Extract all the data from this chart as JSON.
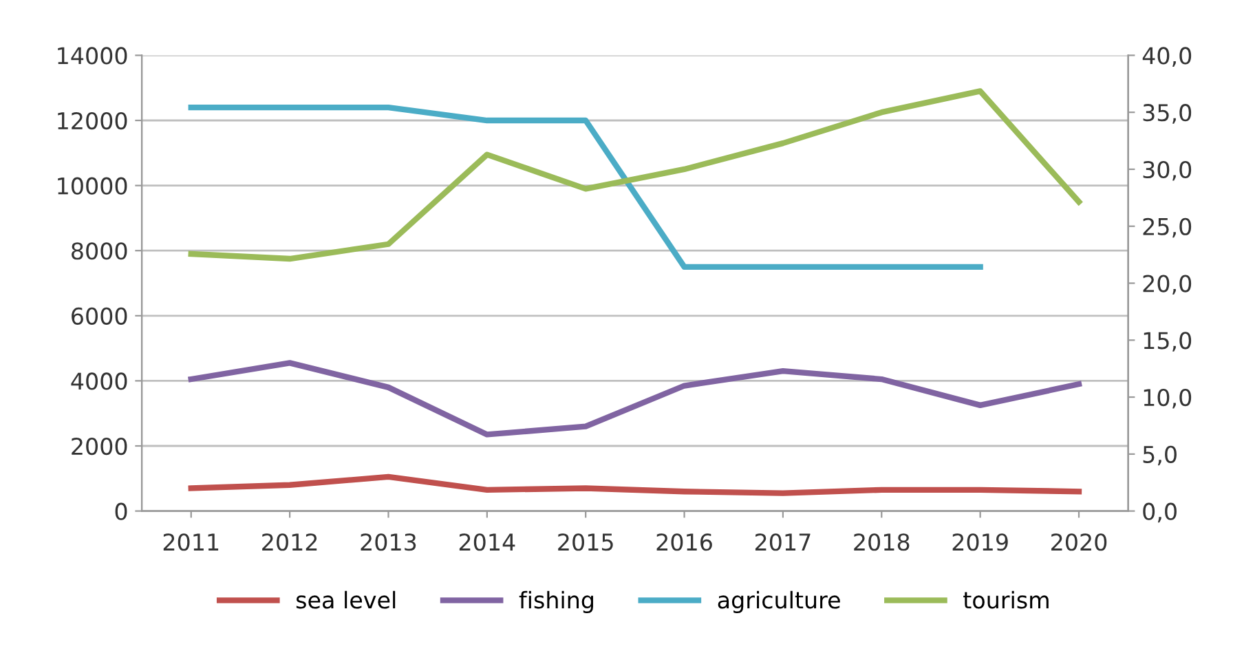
{
  "chart_data": {
    "type": "line",
    "categories": [
      "2011",
      "2012",
      "2013",
      "2014",
      "2015",
      "2016",
      "2017",
      "2018",
      "2019",
      "2020"
    ],
    "series": [
      {
        "name": "sea level",
        "color": "#c0504d",
        "values": [
          700,
          800,
          1050,
          650,
          700,
          600,
          550,
          650,
          650,
          600
        ]
      },
      {
        "name": "fishing",
        "color": "#8064a2",
        "values": [
          4050,
          4550,
          3800,
          2350,
          2600,
          3850,
          4300,
          4050,
          3250,
          3900
        ]
      },
      {
        "name": "agriculture",
        "color": "#4bacc6",
        "values": [
          12400,
          12400,
          12400,
          12000,
          12000,
          7500,
          7500,
          7500,
          7500,
          null
        ]
      },
      {
        "name": "tourism",
        "color": "#9bbb59",
        "values": [
          7900,
          7750,
          8200,
          10950,
          9900,
          10500,
          11300,
          12250,
          12900,
          9500
        ]
      }
    ],
    "ylim": [
      0,
      14000
    ],
    "yticks": [
      0,
      2000,
      4000,
      6000,
      8000,
      10000,
      12000,
      14000
    ],
    "y2lim": [
      0,
      40
    ],
    "y2ticks": [
      {
        "value": 0,
        "label": "0,0"
      },
      {
        "value": 5,
        "label": "5,0"
      },
      {
        "value": 10,
        "label": "10,0"
      },
      {
        "value": 15,
        "label": "15,0"
      },
      {
        "value": 20,
        "label": "20,0"
      },
      {
        "value": 25,
        "label": "25,0"
      },
      {
        "value": 30,
        "label": "30,0"
      },
      {
        "value": 35,
        "label": "35,0"
      },
      {
        "value": 40,
        "label": "40,0"
      }
    ],
    "grid": "y",
    "legend": "bottom",
    "marker": "none",
    "line_style": "solid"
  }
}
